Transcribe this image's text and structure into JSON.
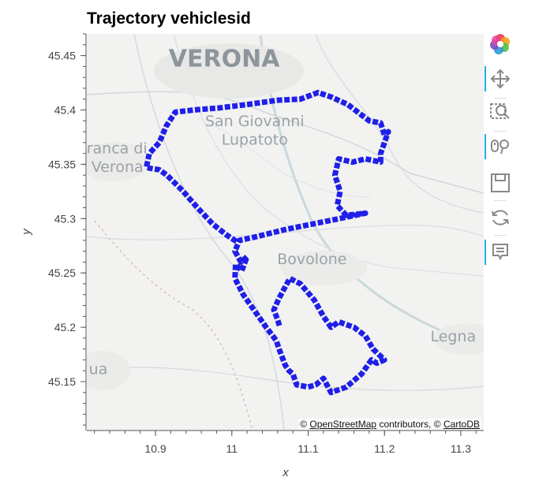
{
  "chart_data": {
    "type": "line",
    "title": "Trajectory vehiclesid",
    "xlabel": "x",
    "ylabel": "y",
    "xlim": [
      10.81,
      11.33
    ],
    "ylim": [
      45.105,
      45.47
    ],
    "xticks": [
      10.9,
      11,
      11.1,
      11.2,
      11.3
    ],
    "yticks": [
      45.15,
      45.2,
      45.25,
      45.3,
      45.35,
      45.4,
      45.45
    ],
    "xtick_labels": [
      "10.9",
      "11",
      "11.1",
      "11.2",
      "11.3"
    ],
    "ytick_labels": [
      "45.15",
      "45.2",
      "45.25",
      "45.3",
      "45.35",
      "45.4",
      "45.45"
    ],
    "grid": false,
    "series": [
      {
        "color": "#1f1fe8",
        "x": [
          11.006,
          10.993,
          10.975,
          10.955,
          10.935,
          10.915,
          10.905,
          10.896,
          10.888,
          10.892,
          10.905,
          10.914,
          10.926,
          10.95,
          10.985,
          11.02,
          11.06,
          11.09,
          11.113,
          11.13,
          11.152,
          11.18,
          11.195,
          11.2,
          11.205,
          11.195,
          11.195,
          11.175,
          11.158,
          11.14,
          11.135,
          11.142,
          11.138,
          11.15,
          11.175,
          11.12,
          11.07,
          11.03,
          11.01,
          11.004,
          11.012,
          11.02,
          11.013,
          11.005,
          11.004,
          11.015,
          11.03,
          11.045,
          11.058,
          11.063,
          11.07,
          11.075,
          11.08,
          11.085,
          11.1,
          11.11,
          11.12,
          11.13,
          11.15,
          11.17,
          11.175,
          11.183,
          11.19,
          11.2,
          11.185,
          11.175,
          11.16,
          11.14,
          11.13,
          11.12,
          11.108,
          11.09,
          11.076,
          11.062,
          11.055,
          11.06,
          11.063
        ],
        "y": [
          45.279,
          45.285,
          45.295,
          45.31,
          45.326,
          45.34,
          45.345,
          45.346,
          45.347,
          45.36,
          45.37,
          45.385,
          45.398,
          45.4,
          45.402,
          45.405,
          45.409,
          45.41,
          45.416,
          45.412,
          45.405,
          45.39,
          45.388,
          45.377,
          45.38,
          45.36,
          45.352,
          45.355,
          45.352,
          45.355,
          45.34,
          45.325,
          45.312,
          45.303,
          45.305,
          45.297,
          45.29,
          45.283,
          45.28,
          45.27,
          45.26,
          45.265,
          45.252,
          45.258,
          45.245,
          45.23,
          45.215,
          45.2,
          45.188,
          45.178,
          45.165,
          45.16,
          45.157,
          45.147,
          45.145,
          45.147,
          45.153,
          45.14,
          45.145,
          45.157,
          45.162,
          45.17,
          45.167,
          45.17,
          45.18,
          45.192,
          45.2,
          45.205,
          45.2,
          45.21,
          45.225,
          45.24,
          45.245,
          45.227,
          45.216,
          45.207,
          45.2
        ]
      }
    ],
    "basemap_labels": [
      {
        "text": "VERONA",
        "x": 10.99,
        "y": 45.44
      },
      {
        "text": "San Giovanni",
        "x": 11.03,
        "y": 45.385
      },
      {
        "text": "Lupatoto",
        "x": 11.03,
        "y": 45.368
      },
      {
        "text": "afranca di",
        "x": 10.84,
        "y": 45.36
      },
      {
        "text": "Verona",
        "x": 10.85,
        "y": 45.343
      },
      {
        "text": "Bovolone",
        "x": 11.105,
        "y": 45.258
      },
      {
        "text": "Legna",
        "x": 11.29,
        "y": 45.187
      },
      {
        "text": "ua",
        "x": 10.825,
        "y": 45.157
      }
    ]
  },
  "attribution": {
    "prefix": "© ",
    "osm_link": "OpenStreetMap",
    "middle": " contributors, © ",
    "carto_link": "CartoDB"
  },
  "toolbar": {
    "tools": [
      "bokeh-logo-icon",
      "pan-icon",
      "box-zoom-icon",
      "wheel-zoom-icon",
      "save-icon",
      "reset-icon",
      "hover-icon"
    ]
  }
}
